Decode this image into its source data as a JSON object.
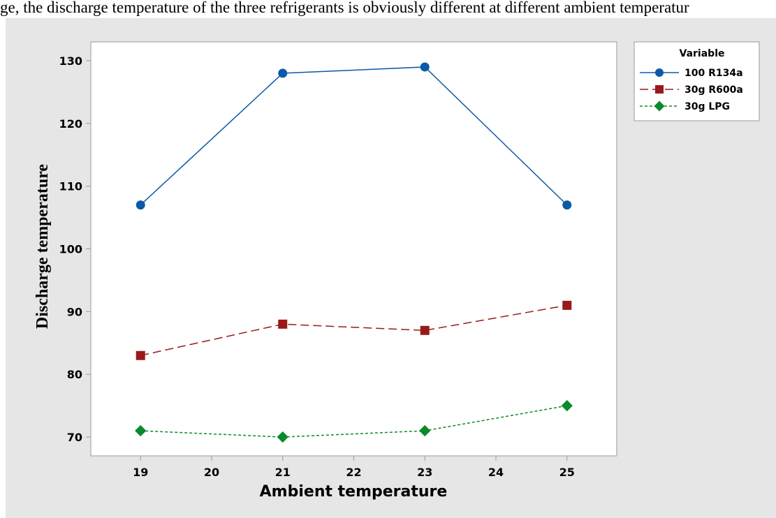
{
  "caption_text": "ge, the discharge temperature of the three refrigerants is obviously different at different ambient temperatur",
  "chart_data": {
    "type": "line",
    "title": "",
    "xlabel": "Ambient temperature",
    "ylabel": "Discharge temperature",
    "xlim": [
      18.3,
      25.7
    ],
    "ylim": [
      67,
      133
    ],
    "xticks": [
      19,
      20,
      21,
      22,
      23,
      24,
      25
    ],
    "yticks": [
      70,
      80,
      90,
      100,
      110,
      120,
      130
    ],
    "grid": false,
    "legend": {
      "title": "Variable",
      "placement": "right"
    },
    "x": [
      19,
      21,
      23,
      25
    ],
    "series": [
      {
        "name": "100 R134a",
        "values": [
          107,
          128,
          129,
          107
        ],
        "color": "#0b5aa8",
        "marker": "circle",
        "line_style": "solid"
      },
      {
        "name": "30g R600a",
        "values": [
          83,
          88,
          87,
          91
        ],
        "color": "#9a1a1a",
        "marker": "square",
        "line_style": "dashed"
      },
      {
        "name": "30g LPG",
        "values": [
          71,
          70,
          71,
          75
        ],
        "color": "#0a8a2a",
        "marker": "diamond",
        "line_style": "dotted"
      }
    ]
  },
  "colors": {
    "page_background": "#ffffff",
    "chart_background": "#e6e6e6",
    "plot_background": "#ffffff",
    "frame": "#9a9a9a"
  }
}
